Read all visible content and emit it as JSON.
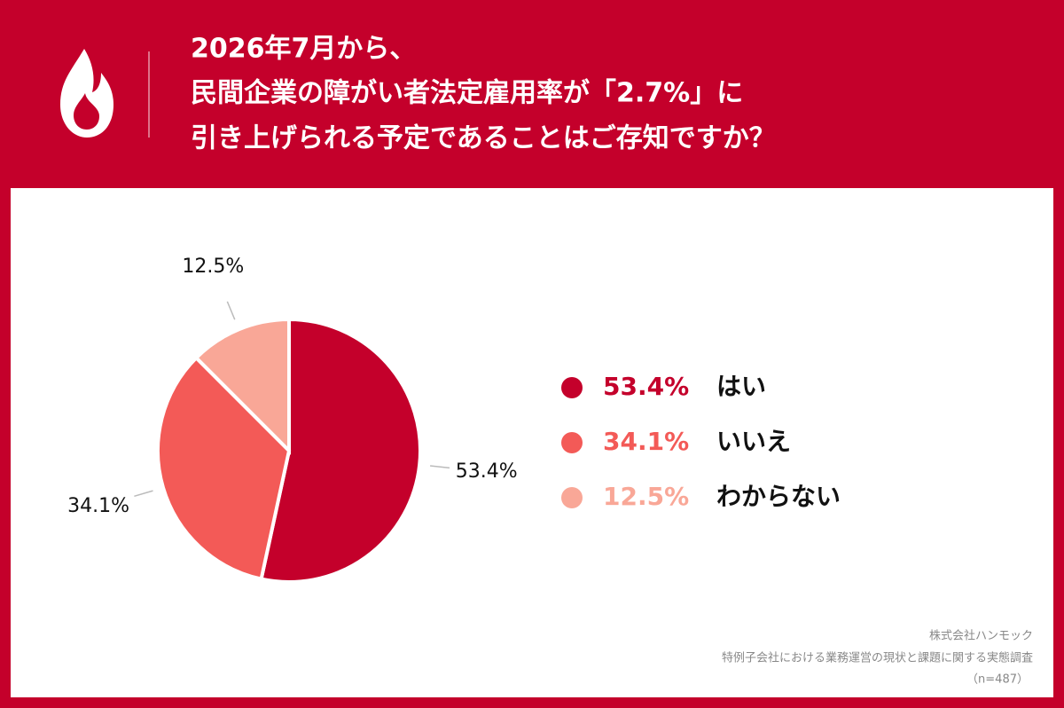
{
  "chart_data": {
    "type": "pie",
    "title": [
      "2026年7月から、",
      "民間企業の障がい者法定雇用率が「2.7%」に",
      "引き上げられる予定であることはご存知ですか？"
    ],
    "categories": [
      "はい",
      "いいえ",
      "わからない"
    ],
    "values": [
      53.4,
      34.1,
      12.5
    ],
    "value_labels": [
      "53.4%",
      "34.1%",
      "12.5%"
    ],
    "colors": [
      "#c4002b",
      "#f35a57",
      "#f9a797"
    ],
    "source": [
      "株式会社ハンモック",
      "特例子会社における業務運営の現状と課題に関する実態調査",
      "（n=487）"
    ]
  }
}
